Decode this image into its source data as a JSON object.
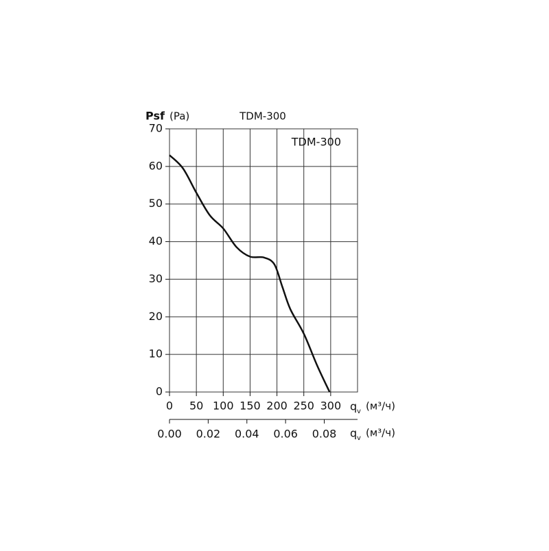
{
  "chart_data": {
    "type": "line",
    "title": "TDM-300",
    "y_label": "Psf",
    "y_unit": "(Pa)",
    "x_label": "q",
    "x_label_subscript": "v",
    "x_unit": "(м³/ч)",
    "x2_unit": "(м³/ч)",
    "legend": "upper right",
    "grid": true,
    "x": [
      0,
      25,
      50,
      75,
      100,
      125,
      150,
      175,
      195,
      210,
      225,
      250,
      275,
      298
    ],
    "series": [
      {
        "name": "TDM-300",
        "color": "#111111",
        "values": [
          63,
          59.5,
          53,
          47,
          43.5,
          38.5,
          36,
          35.8,
          34,
          28,
          22,
          15.5,
          7,
          0
        ]
      }
    ],
    "xlim": [
      0,
      350
    ],
    "xticks": [
      0,
      50,
      100,
      150,
      200,
      250,
      300
    ],
    "ylim": [
      0,
      70
    ],
    "yticks": [
      0,
      10,
      20,
      30,
      40,
      50,
      60,
      70
    ],
    "x2lim": [
      0,
      0.0972
    ],
    "x2ticks": [
      {
        "value": 0,
        "label": "0.00"
      },
      {
        "value": 0.02,
        "label": "0.02"
      },
      {
        "value": 0.04,
        "label": "0.04"
      },
      {
        "value": 0.06,
        "label": "0.06"
      },
      {
        "value": 0.08,
        "label": "0.08"
      }
    ]
  }
}
